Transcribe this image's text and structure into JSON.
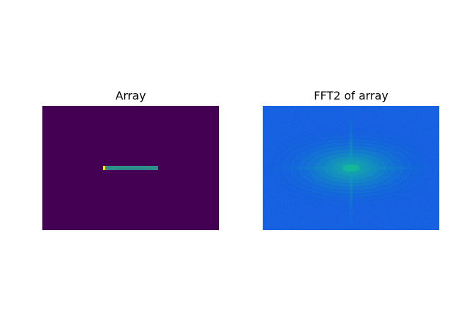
{
  "chart_data": [
    {
      "type": "heatmap",
      "title": "Array",
      "colormap": "viridis",
      "axes_visible": false,
      "background_color": "#440154",
      "features": [
        {
          "kind": "horizontal-bar",
          "color": "#2c8d8a",
          "value_level": 0.45
        },
        {
          "kind": "bright-endpoint",
          "color": "#fde725",
          "value_level": 1.0
        }
      ]
    },
    {
      "type": "heatmap",
      "title": "FFT2 of array",
      "colormap": "winter",
      "axes_visible": false,
      "background_color": "#0b4fdc",
      "features": [
        {
          "kind": "central-peak",
          "color": "#13a99e"
        },
        {
          "kind": "horizontal-ripple-band",
          "color": "#127fd0"
        },
        {
          "kind": "vertical-ripple-band",
          "color": "#0e87c4"
        }
      ]
    }
  ]
}
